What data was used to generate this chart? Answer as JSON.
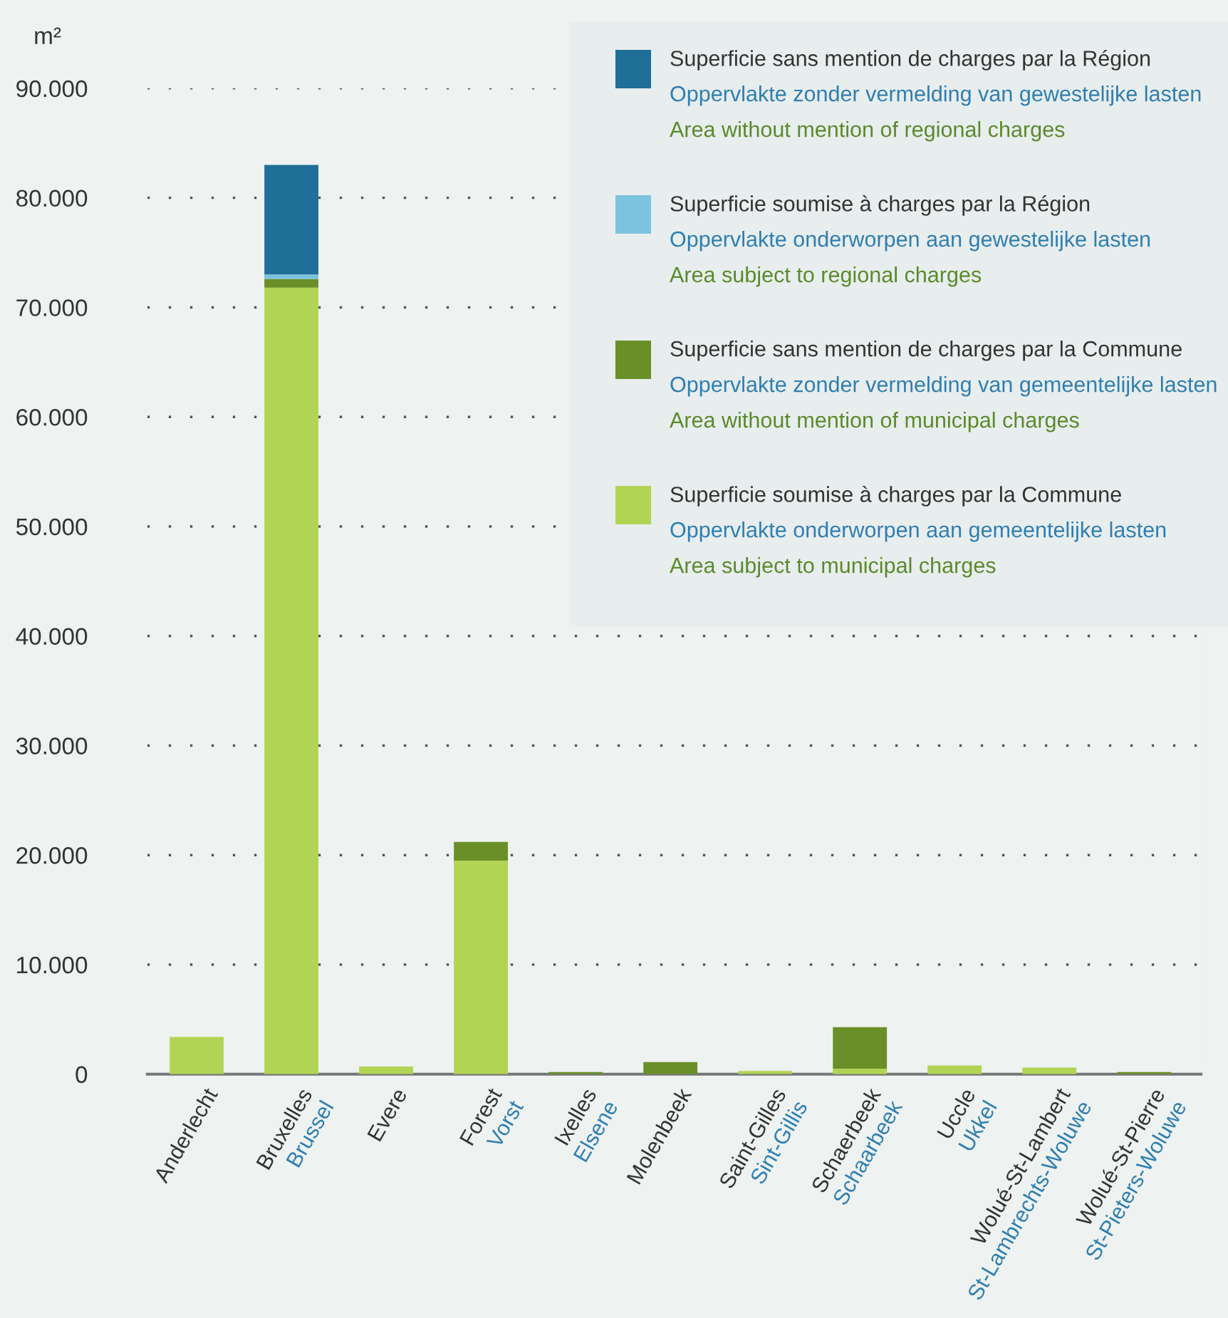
{
  "chart_data": {
    "type": "bar",
    "stacked": true,
    "ylabel": "m²",
    "categories": [
      "Anderlecht",
      "Bruxelles\nBrussel",
      "Evere",
      "Forest\nVorst",
      "Ixelles\nElsene",
      "Molenbeek",
      "Saint-Gilles\nSint-Gillis",
      "Schaerbeek\nSchaarbeek",
      "Uccle\nUkkel",
      "Wolué-St-Lambert\nSt-Lambrechts-Woluwe",
      "Wolué-St-Pierre\nSt-Pieters-Woluwe"
    ],
    "series": [
      {
        "name": "Superficie soumise à charges par la Commune\nOppervlakte onderworpen aan gemeentelijke lasten\nArea subject to municipal charges",
        "color": "#b2d455",
        "values": [
          3400,
          71800,
          700,
          19500,
          0,
          0,
          300,
          500,
          800,
          600,
          0
        ]
      },
      {
        "name": "Superficie sans mention de charges par la Commune\nOppervlakte zonder vermelding van gemeentelijke lasten\nArea without mention of municipal charges",
        "color": "#6a8f28",
        "values": [
          0,
          800,
          0,
          1700,
          200,
          1100,
          0,
          3800,
          0,
          0,
          200
        ]
      },
      {
        "name": "Superficie soumise à charges par la Région\nOppervlakte onderworpen aan gewestelijke lasten\nArea subject to regional charges",
        "color": "#7cc3e0",
        "values": [
          0,
          400,
          0,
          0,
          0,
          0,
          0,
          0,
          0,
          0,
          0
        ]
      },
      {
        "name": "Superficie sans mention de charges par la Région\nOppervlakte zonder vermelding van gewestelijke lasten\nArea without mention of regional charges",
        "color": "#1f6f98",
        "values": [
          0,
          10000,
          0,
          0,
          0,
          0,
          0,
          0,
          0,
          0,
          0
        ]
      }
    ],
    "ylim": [
      0,
      90000
    ],
    "yticks": [
      0,
      {
        "value": 10000,
        "label": "10.000"
      },
      {
        "value": 20000,
        "label": "20.000"
      },
      {
        "value": 30000,
        "label": "30.000"
      },
      {
        "value": 40000,
        "label": "40.000"
      },
      {
        "value": 50000,
        "label": "50.000"
      },
      {
        "value": 60000,
        "label": "60.000"
      },
      {
        "value": 70000,
        "label": "70.000"
      },
      {
        "value": 80000,
        "label": "80.000"
      },
      {
        "value": 90000,
        "label": "90.000"
      }
    ],
    "grid": "y",
    "legend": "top right"
  }
}
